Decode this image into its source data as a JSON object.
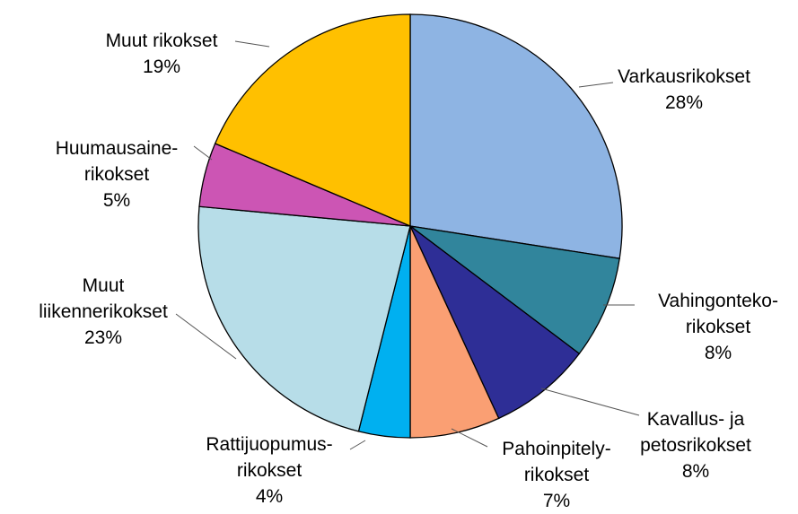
{
  "chart_data": {
    "type": "pie",
    "categories": [
      "Varkausrikokset",
      "Vahingonteko-\nrikokset",
      "Kavallus- ja\npetosrikokset",
      "Pahoinpitely-\nrikokset",
      "Rattijuopumus-\nrikokset",
      "Muut\nliikennerikokset",
      "Huumausaine-\nrikokset",
      "Muut rikokset"
    ],
    "values": [
      28,
      8,
      8,
      7,
      4,
      23,
      5,
      19
    ],
    "value_labels": [
      "28%",
      "8%",
      "8%",
      "7%",
      "4%",
      "23%",
      "5%",
      "19%"
    ],
    "colors": [
      "#8eb4e3",
      "#31859c",
      "#2e2e96",
      "#fa9f73",
      "#00b0f0",
      "#b7dde8",
      "#cc55b4",
      "#ffc000"
    ]
  }
}
